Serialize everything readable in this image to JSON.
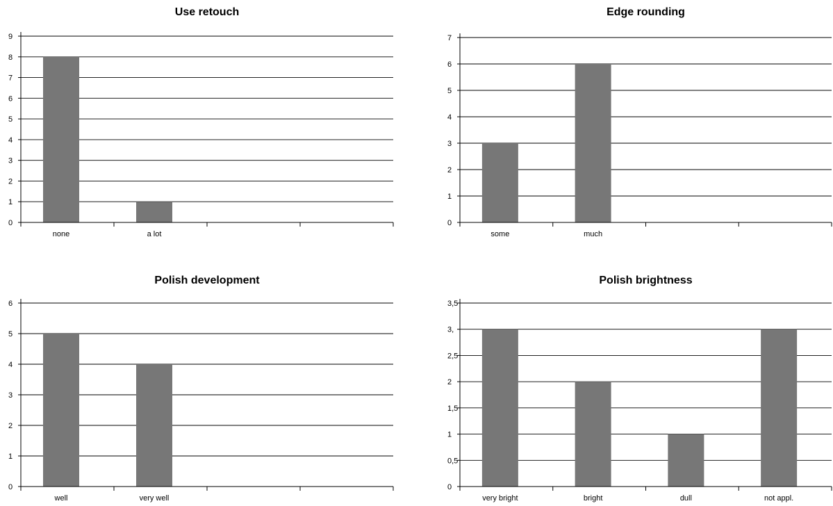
{
  "colors": {
    "bar": "#777777",
    "grid": "#000000",
    "background": "#ffffff"
  },
  "chart_data": [
    {
      "type": "bar",
      "title": "Use retouch",
      "categories": [
        "none",
        "a lot",
        "",
        ""
      ],
      "values": [
        8,
        1,
        null,
        null
      ],
      "ylim": [
        0,
        9
      ],
      "yticks": [
        0,
        1,
        2,
        3,
        4,
        5,
        6,
        7,
        8,
        9
      ],
      "ytick_labels": [
        "0",
        "1",
        "2",
        "3",
        "4",
        "5",
        "6",
        "7",
        "8",
        "9"
      ],
      "grid": true,
      "xlabel": "",
      "ylabel": ""
    },
    {
      "type": "bar",
      "title": "Edge rounding",
      "categories": [
        "some",
        "much",
        "",
        ""
      ],
      "values": [
        3,
        6,
        null,
        null
      ],
      "ylim": [
        0,
        7
      ],
      "yticks": [
        0,
        1,
        2,
        3,
        4,
        5,
        6,
        7
      ],
      "ytick_labels": [
        "0",
        "1",
        "2",
        "3",
        "4",
        "5",
        "6",
        "7"
      ],
      "grid": true,
      "xlabel": "",
      "ylabel": ""
    },
    {
      "type": "bar",
      "title": "Polish development",
      "categories": [
        "well",
        "very well",
        "",
        ""
      ],
      "values": [
        5,
        4,
        null,
        null
      ],
      "ylim": [
        0,
        6
      ],
      "yticks": [
        0,
        1,
        2,
        3,
        4,
        5,
        6
      ],
      "ytick_labels": [
        "0",
        "1",
        "2",
        "3",
        "4",
        "5",
        "6"
      ],
      "grid": true,
      "xlabel": "",
      "ylabel": ""
    },
    {
      "type": "bar",
      "title": "Polish brightness",
      "categories": [
        "very bright",
        "bright",
        "dull",
        "not appl."
      ],
      "values": [
        3,
        2,
        1,
        3
      ],
      "ylim": [
        0,
        3.5
      ],
      "yticks": [
        0,
        0.5,
        1,
        1.5,
        2,
        2.5,
        3,
        3.5
      ],
      "ytick_labels": [
        "0",
        "0,5",
        "1",
        "1,5",
        "2",
        "2,5",
        "3,",
        "3,5"
      ],
      "grid": true,
      "xlabel": "",
      "ylabel": ""
    }
  ]
}
